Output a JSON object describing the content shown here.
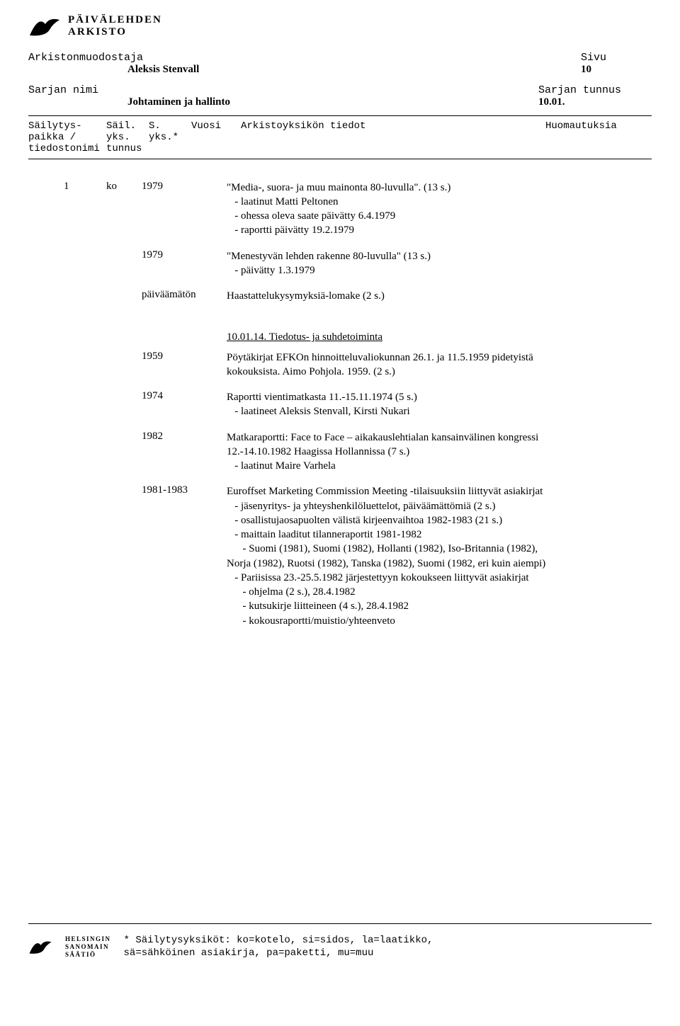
{
  "logo": {
    "line1": "PÄIVÄLEHDEN",
    "line2": "ARKISTO"
  },
  "header": {
    "arkistonmuodostaja_label": "Arkistonmuodostaja",
    "arkistonmuodostaja_value": "Aleksis Stenvall",
    "sivu_label": "Sivu",
    "sivu_value": "10",
    "sarjan_nimi_label": "Sarjan nimi",
    "sarjan_nimi_value": "Johtaminen ja hallinto",
    "sarjan_tunnus_label": "Sarjan tunnus",
    "sarjan_tunnus_value": "10.01."
  },
  "columns": {
    "c1a": "Säilytys-",
    "c1b": "paikka /",
    "c1c": "tiedostonimi",
    "c2a": "Säil.",
    "c2b": "yks.",
    "c2c": "tunnus",
    "c3a": "S.",
    "c3b": "yks.*",
    "c4": "Vuosi",
    "c5": "Arkistoyksikön tiedot",
    "c6": "Huomautuksia"
  },
  "entries": [
    {
      "c1": "1",
      "c2": "ko",
      "c3": "1979",
      "c4": "\"Media-, suora- ja muu mainonta 80-luvulla\". (13 s.)\n   - laatinut Matti Peltonen\n   - ohessa oleva saate päivätty 6.4.1979\n   - raportti päivätty 19.2.1979"
    },
    {
      "c3": "1979",
      "c4": "\"Menestyvän lehden rakenne 80-luvulla\" (13 s.)\n   - päivätty 1.3.1979"
    },
    {
      "c3": "päiväämätön",
      "c4": "Haastattelukysymyksiä-lomake (2 s.)"
    },
    {
      "section": "10.01.14. Tiedotus- ja suhdetoiminta"
    },
    {
      "c3": "1959",
      "c4": "Pöytäkirjat EFKOn hinnoitteluvaliokunnan 26.1. ja 11.5.1959 pidetyistä kokouksista. Aimo Pohjola. 1959. (2 s.)"
    },
    {
      "c3": "1974",
      "c4": "Raportti vientimatkasta 11.-15.11.1974 (5 s.)\n   - laatineet Aleksis Stenvall, Kirsti Nukari"
    },
    {
      "c3": "1982",
      "c4": "Matkaraportti: Face to Face – aikakauslehtialan kansainvälinen kongressi 12.-14.10.1982 Haagissa Hollannissa (7 s.)\n   - laatinut Maire Varhela"
    },
    {
      "c3": "1981-1983",
      "c4": "Euroffset Marketing Commission Meeting -tilaisuuksiin liittyvät asiakirjat\n   - jäsenyritys- ja yhteyshenkilöluettelot, päiväämättömiä (2 s.)\n   - osallistujaosapuolten välistä kirjeenvaihtoa 1982-1983 (21 s.)\n   - maittain laaditut tilanneraportit 1981-1982\n      - Suomi (1981), Suomi (1982), Hollanti (1982), Iso-Britannia (1982), Norja (1982), Ruotsi (1982), Tanska (1982), Suomi (1982, eri kuin aiempi)\n   - Pariisissa 23.-25.5.1982 järjestettyyn kokoukseen liittyvät asiakirjat\n      - ohjelma (2 s.), 28.4.1982\n      - kutsukirje liitteineen (4 s.), 28.4.1982\n      - kokousraportti/muistio/yhteenveto"
    }
  ],
  "footnote": {
    "line1": "* Säilytysyksiköt: ko=kotelo, si=sidos, la=laatikko,",
    "line2": "  sä=sähköinen asiakirja, pa=paketti, mu=muu"
  },
  "footer_logo": {
    "l1": "HELSINGIN",
    "l2": "SANOMAIN",
    "l3": "SÄÄTIÖ"
  },
  "colors": {
    "text": "#000000",
    "bg": "#ffffff",
    "rule": "#000000"
  }
}
